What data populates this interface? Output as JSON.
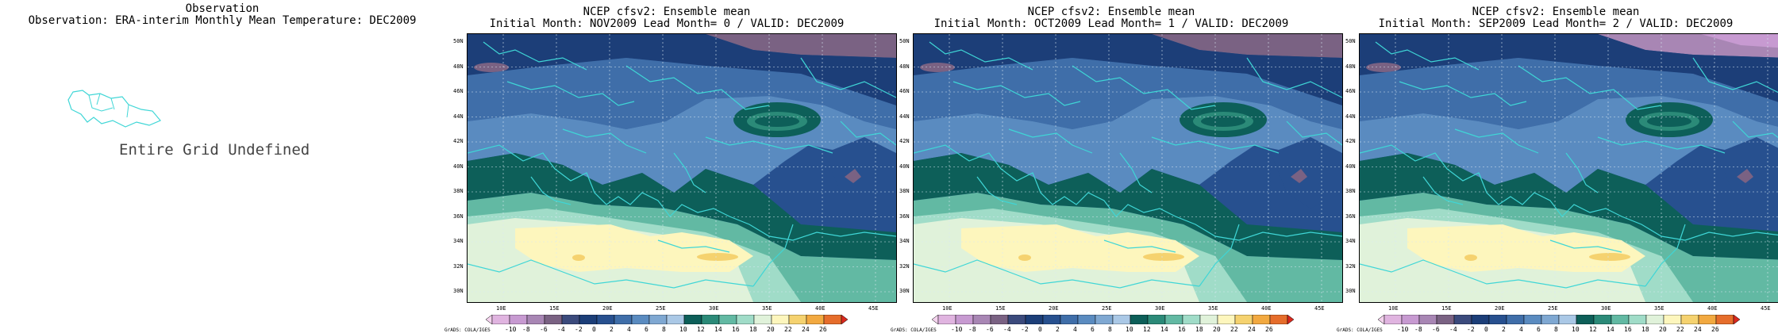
{
  "observation": {
    "title_line1": "Observation",
    "title_line2": "Observation: ERA-interim Monthly Mean Temperature: DEC2009",
    "message": "Entire Grid Undefined"
  },
  "panels": [
    {
      "title_line1": "NCEP cfsv2: Ensemble mean",
      "title_line2": "Initial Month: NOV2009  Lead Month= 0 / VALID: DEC2009"
    },
    {
      "title_line1": "NCEP cfsv2: Ensemble mean",
      "title_line2": "Initial Month: OCT2009  Lead Month= 1 / VALID: DEC2009"
    },
    {
      "title_line1": "NCEP cfsv2: Ensemble mean",
      "title_line2": "Initial Month: SEP2009  Lead Month= 2 / VALID: DEC2009"
    }
  ],
  "lat_labels": [
    "50N",
    "48N",
    "46N",
    "44N",
    "42N",
    "40N",
    "38N",
    "36N",
    "34N",
    "32N",
    "30N"
  ],
  "lon_labels": [
    "10E",
    "15E",
    "20E",
    "25E",
    "30E",
    "35E",
    "40E",
    "45E"
  ],
  "colorbar": {
    "credit": "GrADS: COLA/IGES",
    "labels": [
      "-10",
      "-8",
      "-6",
      "-4",
      "-2",
      "0",
      "2",
      "4",
      "6",
      "8",
      "10",
      "12",
      "14",
      "16",
      "18",
      "20",
      "22",
      "24",
      "26"
    ],
    "colors": [
      "#f4d3ee",
      "#e0b4e0",
      "#c79ad1",
      "#a886b4",
      "#7a6283",
      "#3b4a7c",
      "#1c3e78",
      "#27508f",
      "#3f6ea9",
      "#5a8bc0",
      "#7fa8d2",
      "#aac8e6",
      "#0d5f59",
      "#2b8a78",
      "#62b9a3",
      "#a0dcc8",
      "#e0f2da",
      "#fdf6bd",
      "#f5d26f",
      "#f2a940",
      "#e66d2b",
      "#d9291e"
    ]
  },
  "colors": {
    "coastline": "#3fd6d6",
    "grid": "#d8e8f2"
  }
}
